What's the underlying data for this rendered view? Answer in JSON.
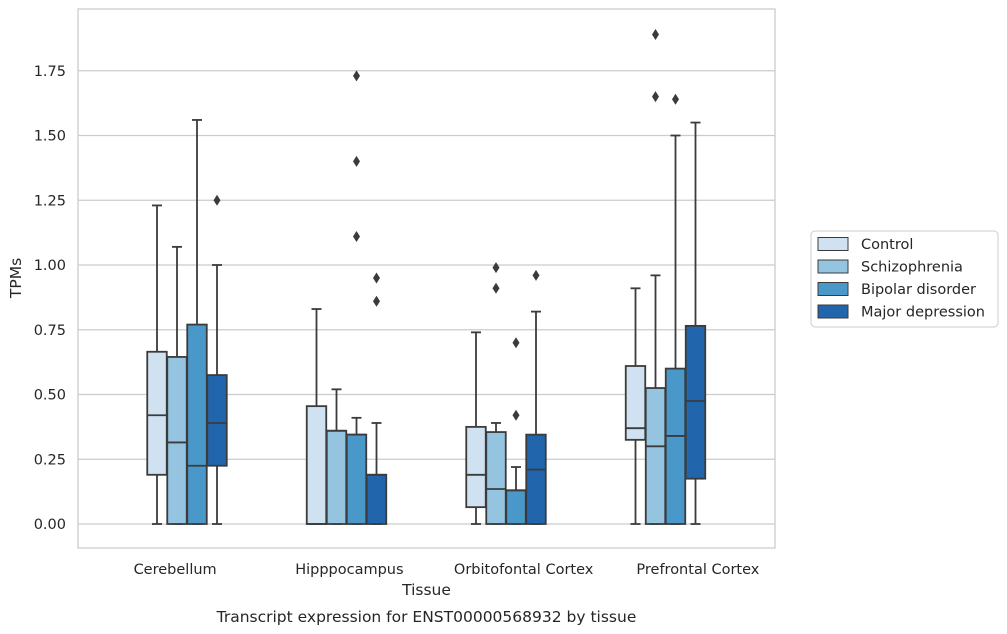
{
  "chart_data": {
    "type": "box",
    "title": "",
    "caption": "Transcript expression for ENST00000568932 by tissue",
    "xlabel": "Tissue",
    "ylabel": "TPMs",
    "ylim": [
      -0.09,
      1.98
    ],
    "yticks": [
      0.0,
      0.25,
      0.5,
      0.75,
      1.0,
      1.25,
      1.5,
      1.75
    ],
    "ytick_labels": [
      "0.00",
      "0.25",
      "0.50",
      "0.75",
      "1.00",
      "1.25",
      "1.50",
      "1.75"
    ],
    "grid": "horizontal",
    "legend_position": "right",
    "categories": [
      "Cerebellum",
      "Hipppocampus",
      "Orbitofontal Cortex",
      "Prefrontal Cortex"
    ],
    "series": [
      {
        "name": "Control",
        "color": "#d0e1f2",
        "boxes": [
          {
            "whisker_low": 0.0,
            "q1": 0.19,
            "median": 0.42,
            "q3": 0.665,
            "whisker_high": 1.23,
            "outliers": []
          },
          {
            "whisker_low": 0.0,
            "q1": 0.0,
            "median": 0.0,
            "q3": 0.455,
            "whisker_high": 0.83,
            "outliers": []
          },
          {
            "whisker_low": 0.0,
            "q1": 0.065,
            "median": 0.19,
            "q3": 0.375,
            "whisker_high": 0.74,
            "outliers": []
          },
          {
            "whisker_low": 0.0,
            "q1": 0.325,
            "median": 0.37,
            "q3": 0.61,
            "whisker_high": 0.91,
            "outliers": []
          }
        ]
      },
      {
        "name": "Schizophrenia",
        "color": "#94c4df",
        "boxes": [
          {
            "whisker_low": 0.0,
            "q1": 0.0,
            "median": 0.315,
            "q3": 0.645,
            "whisker_high": 1.07,
            "outliers": []
          },
          {
            "whisker_low": 0.0,
            "q1": 0.0,
            "median": 0.36,
            "q3": 0.36,
            "whisker_high": 0.52,
            "outliers": []
          },
          {
            "whisker_low": 0.0,
            "q1": 0.0,
            "median": 0.135,
            "q3": 0.355,
            "whisker_high": 0.39,
            "outliers": [
              0.91,
              0.99
            ]
          },
          {
            "whisker_low": 0.0,
            "q1": 0.0,
            "median": 0.3,
            "q3": 0.525,
            "whisker_high": 0.96,
            "outliers": [
              1.65,
              1.89
            ]
          }
        ]
      },
      {
        "name": "Bipolar disorder",
        "color": "#4a98c9",
        "boxes": [
          {
            "whisker_low": 0.0,
            "q1": 0.0,
            "median": 0.225,
            "q3": 0.77,
            "whisker_high": 1.56,
            "outliers": []
          },
          {
            "whisker_low": 0.0,
            "q1": 0.0,
            "median": 0.345,
            "q3": 0.345,
            "whisker_high": 0.41,
            "outliers": [
              1.11,
              1.4,
              1.73
            ]
          },
          {
            "whisker_low": 0.0,
            "q1": 0.0,
            "median": 0.13,
            "q3": 0.13,
            "whisker_high": 0.22,
            "outliers": [
              0.42,
              0.7
            ]
          },
          {
            "whisker_low": 0.0,
            "q1": 0.0,
            "median": 0.34,
            "q3": 0.6,
            "whisker_high": 1.5,
            "outliers": [
              1.64
            ]
          }
        ]
      },
      {
        "name": "Major depression",
        "color": "#2166ac",
        "boxes": [
          {
            "whisker_low": 0.0,
            "q1": 0.225,
            "median": 0.39,
            "q3": 0.575,
            "whisker_high": 1.0,
            "outliers": [
              1.25
            ]
          },
          {
            "whisker_low": 0.0,
            "q1": 0.0,
            "median": 0.19,
            "q3": 0.19,
            "whisker_high": 0.39,
            "outliers": [
              0.86,
              0.95
            ]
          },
          {
            "whisker_low": 0.0,
            "q1": 0.0,
            "median": 0.21,
            "q3": 0.345,
            "whisker_high": 0.82,
            "outliers": [
              0.96
            ]
          },
          {
            "whisker_low": 0.0,
            "q1": 0.175,
            "median": 0.475,
            "q3": 0.765,
            "whisker_high": 1.55,
            "outliers": []
          }
        ]
      }
    ]
  }
}
